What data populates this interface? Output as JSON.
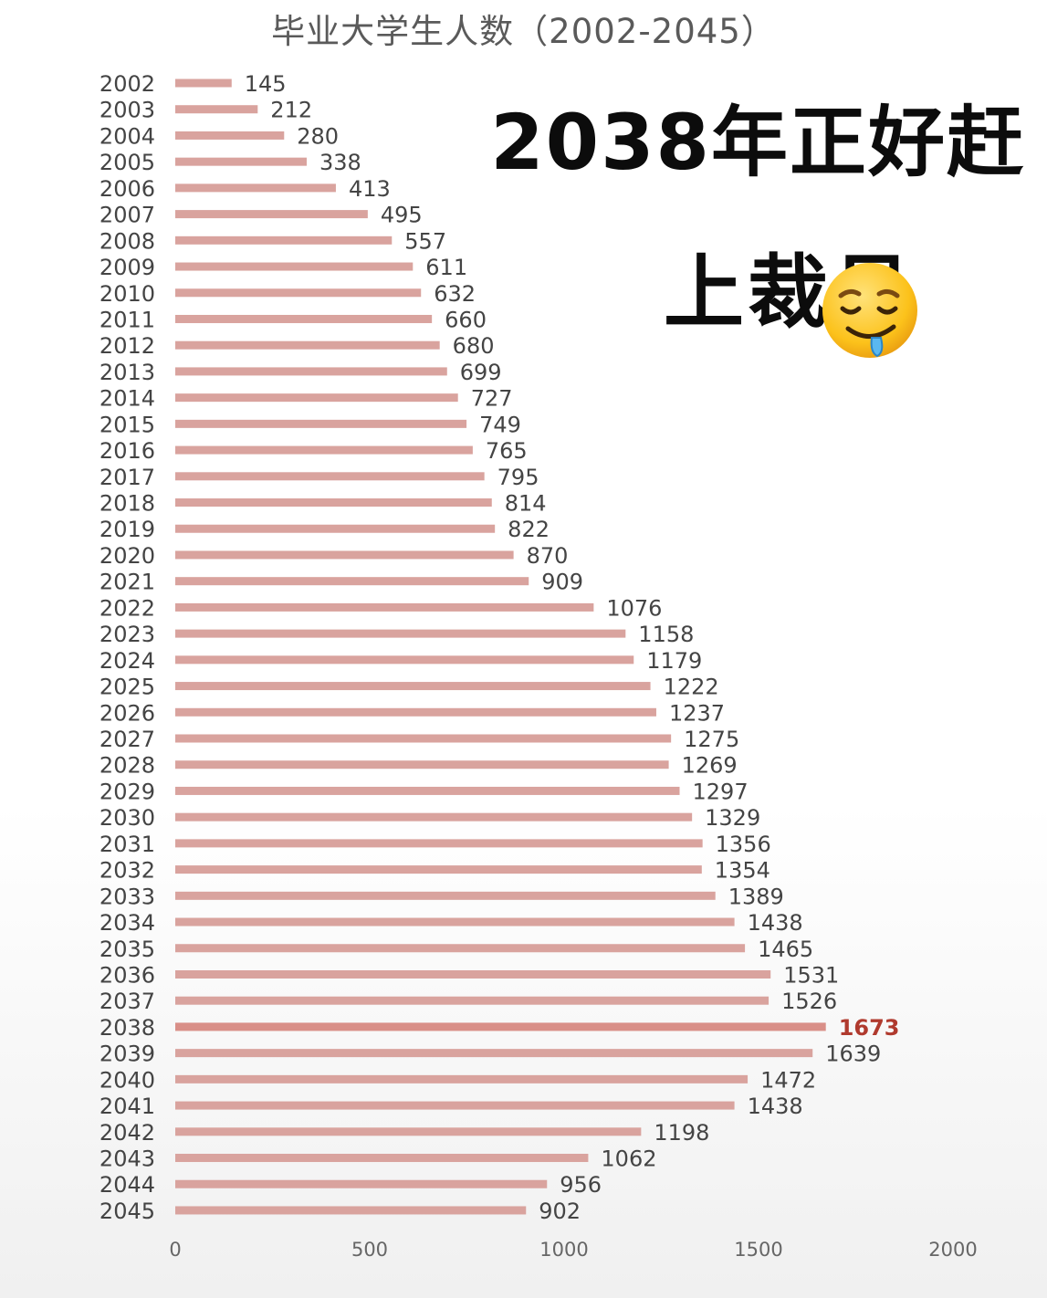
{
  "chart_data": {
    "type": "bar",
    "orientation": "horizontal",
    "title": "毕业大学生人数（2002-2045）",
    "categories": [
      "2002",
      "2003",
      "2004",
      "2005",
      "2006",
      "2007",
      "2008",
      "2009",
      "2010",
      "2011",
      "2012",
      "2013",
      "2014",
      "2015",
      "2016",
      "2017",
      "2018",
      "2019",
      "2020",
      "2021",
      "2022",
      "2023",
      "2024",
      "2025",
      "2026",
      "2027",
      "2028",
      "2029",
      "2030",
      "2031",
      "2032",
      "2033",
      "2034",
      "2035",
      "2036",
      "2037",
      "2038",
      "2039",
      "2040",
      "2041",
      "2042",
      "2043",
      "2044",
      "2045"
    ],
    "values": [
      145,
      212,
      280,
      338,
      413,
      495,
      557,
      611,
      632,
      660,
      680,
      699,
      727,
      749,
      765,
      795,
      814,
      822,
      870,
      909,
      1076,
      1158,
      1179,
      1222,
      1237,
      1275,
      1269,
      1297,
      1329,
      1356,
      1354,
      1389,
      1438,
      1465,
      1531,
      1526,
      1673,
      1639,
      1472,
      1438,
      1198,
      1062,
      956,
      902
    ],
    "xlim": [
      0,
      2000
    ],
    "xticks": [
      "0",
      "500",
      "1000",
      "1500",
      "2000"
    ],
    "highlight": {
      "category": "2038",
      "color": "#b03a2e"
    },
    "bar_color": "#d9a39e",
    "grid": false
  },
  "overlay": {
    "line1": "2038年正好赶",
    "line2": "上裁员",
    "emoji": "drooling-face-icon"
  }
}
